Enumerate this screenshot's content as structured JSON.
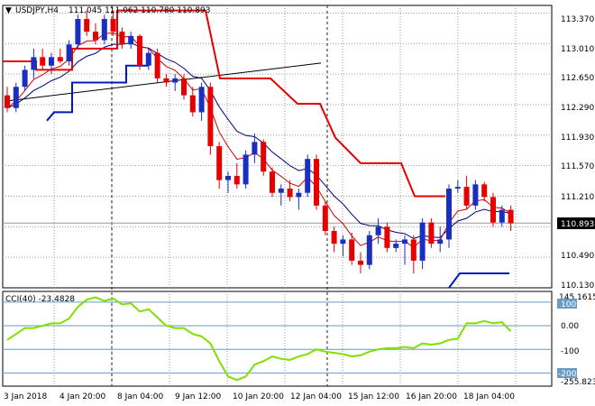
{
  "header": {
    "symbol_label": "USDJPY,H4",
    "ohlc_label": "111.045 111.062 110.780 110.893"
  },
  "price_axis": {
    "labels": [
      "113.370",
      "113.010",
      "112.650",
      "112.290",
      "111.930",
      "111.570",
      "111.210",
      "110.490",
      "110.130"
    ],
    "current_price": "110.893"
  },
  "cci": {
    "label": "CCI(40) -23.4828",
    "scale_max": "145.1615",
    "scale_min": "-255.8235",
    "levels": [
      "100",
      "0.00",
      "-100",
      "-200"
    ]
  },
  "time_axis": {
    "labels": [
      "3 Jan 2018",
      "4 Jan 20:00",
      "8 Jan 04:00",
      "9 Jan 12:00",
      "10 Jan 20:00",
      "12 Jan 04:00",
      "15 Jan 12:00",
      "16 Jan 20:00",
      "18 Jan 04:00"
    ]
  },
  "colors": {
    "bull": "#1a2fbf",
    "bear": "#e60000",
    "stop_line": "#e60000",
    "stop_support": "#0018c8",
    "ma_fast": "#d40000",
    "ma_slow": "#000080",
    "trendline": "#000000",
    "cci_line": "#7fe000",
    "cci_levels": "#6a9bc3",
    "grid": "#9a9a9a"
  },
  "chart_data": {
    "type": "candlestick",
    "ohlc": [
      [
        112.4,
        112.5,
        112.2,
        112.25
      ],
      [
        112.25,
        112.55,
        112.2,
        112.5
      ],
      [
        112.5,
        112.75,
        112.45,
        112.7
      ],
      [
        112.7,
        112.95,
        112.6,
        112.85
      ],
      [
        112.85,
        112.95,
        112.7,
        112.75
      ],
      [
        112.75,
        112.9,
        112.65,
        112.85
      ],
      [
        112.85,
        112.95,
        112.78,
        112.8
      ],
      [
        112.8,
        113.05,
        112.75,
        113.0
      ],
      [
        113.0,
        113.35,
        112.95,
        113.3
      ],
      [
        113.3,
        113.4,
        113.1,
        113.15
      ],
      [
        113.15,
        113.25,
        113.0,
        113.05
      ],
      [
        113.05,
        113.35,
        113.0,
        113.3
      ],
      [
        113.3,
        113.4,
        113.1,
        113.15
      ],
      [
        113.15,
        113.2,
        112.95,
        113.0
      ],
      [
        113.0,
        113.15,
        112.95,
        113.1
      ],
      [
        113.1,
        113.12,
        112.7,
        112.75
      ],
      [
        112.75,
        112.95,
        112.7,
        112.9
      ],
      [
        112.9,
        112.95,
        112.55,
        112.6
      ],
      [
        112.6,
        112.65,
        112.5,
        112.55
      ],
      [
        112.55,
        112.65,
        112.45,
        112.6
      ],
      [
        112.6,
        112.65,
        112.35,
        112.4
      ],
      [
        112.4,
        112.5,
        112.15,
        112.2
      ],
      [
        112.2,
        112.55,
        112.1,
        112.5
      ],
      [
        112.5,
        112.55,
        111.7,
        111.8
      ],
      [
        111.8,
        111.85,
        111.3,
        111.4
      ],
      [
        111.4,
        111.5,
        111.25,
        111.45
      ],
      [
        111.45,
        111.6,
        111.3,
        111.35
      ],
      [
        111.35,
        111.75,
        111.3,
        111.7
      ],
      [
        111.7,
        111.95,
        111.6,
        111.85
      ],
      [
        111.85,
        111.88,
        111.45,
        111.5
      ],
      [
        111.5,
        111.55,
        111.2,
        111.25
      ],
      [
        111.25,
        111.35,
        111.1,
        111.3
      ],
      [
        111.3,
        111.4,
        111.15,
        111.2
      ],
      [
        111.2,
        111.3,
        111.05,
        111.25
      ],
      [
        111.25,
        111.7,
        111.2,
        111.65
      ],
      [
        111.65,
        111.7,
        111.05,
        111.1
      ],
      [
        111.1,
        111.15,
        110.75,
        110.8
      ],
      [
        110.8,
        110.85,
        110.55,
        110.65
      ],
      [
        110.65,
        110.75,
        110.5,
        110.7
      ],
      [
        110.7,
        110.78,
        110.4,
        110.45
      ],
      [
        110.45,
        110.55,
        110.3,
        110.4
      ],
      [
        110.4,
        110.8,
        110.35,
        110.75
      ],
      [
        110.75,
        110.95,
        110.65,
        110.85
      ],
      [
        110.85,
        110.9,
        110.55,
        110.6
      ],
      [
        110.6,
        110.7,
        110.55,
        110.65
      ],
      [
        110.65,
        110.75,
        110.4,
        110.7
      ],
      [
        110.7,
        110.75,
        110.3,
        110.45
      ],
      [
        110.45,
        110.95,
        110.35,
        110.9
      ],
      [
        110.9,
        110.95,
        110.6,
        110.65
      ],
      [
        110.65,
        110.85,
        110.55,
        110.7
      ],
      [
        110.7,
        111.35,
        110.6,
        111.3
      ],
      [
        111.3,
        111.4,
        111.25,
        111.32
      ],
      [
        111.32,
        111.45,
        111.05,
        111.1
      ],
      [
        111.1,
        111.4,
        111.05,
        111.35
      ],
      [
        111.35,
        111.38,
        111.15,
        111.2
      ],
      [
        111.2,
        111.25,
        110.85,
        110.9
      ],
      [
        110.9,
        111.1,
        110.85,
        111.05
      ],
      [
        111.05,
        111.1,
        110.8,
        110.89
      ]
    ],
    "cci_values": [
      -60,
      -35,
      -10,
      -10,
      0,
      10,
      10,
      30,
      80,
      110,
      120,
      105,
      115,
      90,
      95,
      60,
      70,
      35,
      0,
      -10,
      -10,
      -35,
      -45,
      -75,
      -150,
      -215,
      -230,
      -215,
      -165,
      -150,
      -130,
      -140,
      -145,
      -130,
      -120,
      -100,
      -110,
      -115,
      -120,
      -130,
      -125,
      -110,
      -100,
      -95,
      -95,
      -90,
      -95,
      -75,
      -80,
      -75,
      -60,
      -55,
      10,
      10,
      20,
      10,
      15,
      -23.48
    ],
    "ylim": [
      110.13,
      113.46
    ],
    "cci_ylim": [
      -255.8235,
      145.1615
    ]
  }
}
